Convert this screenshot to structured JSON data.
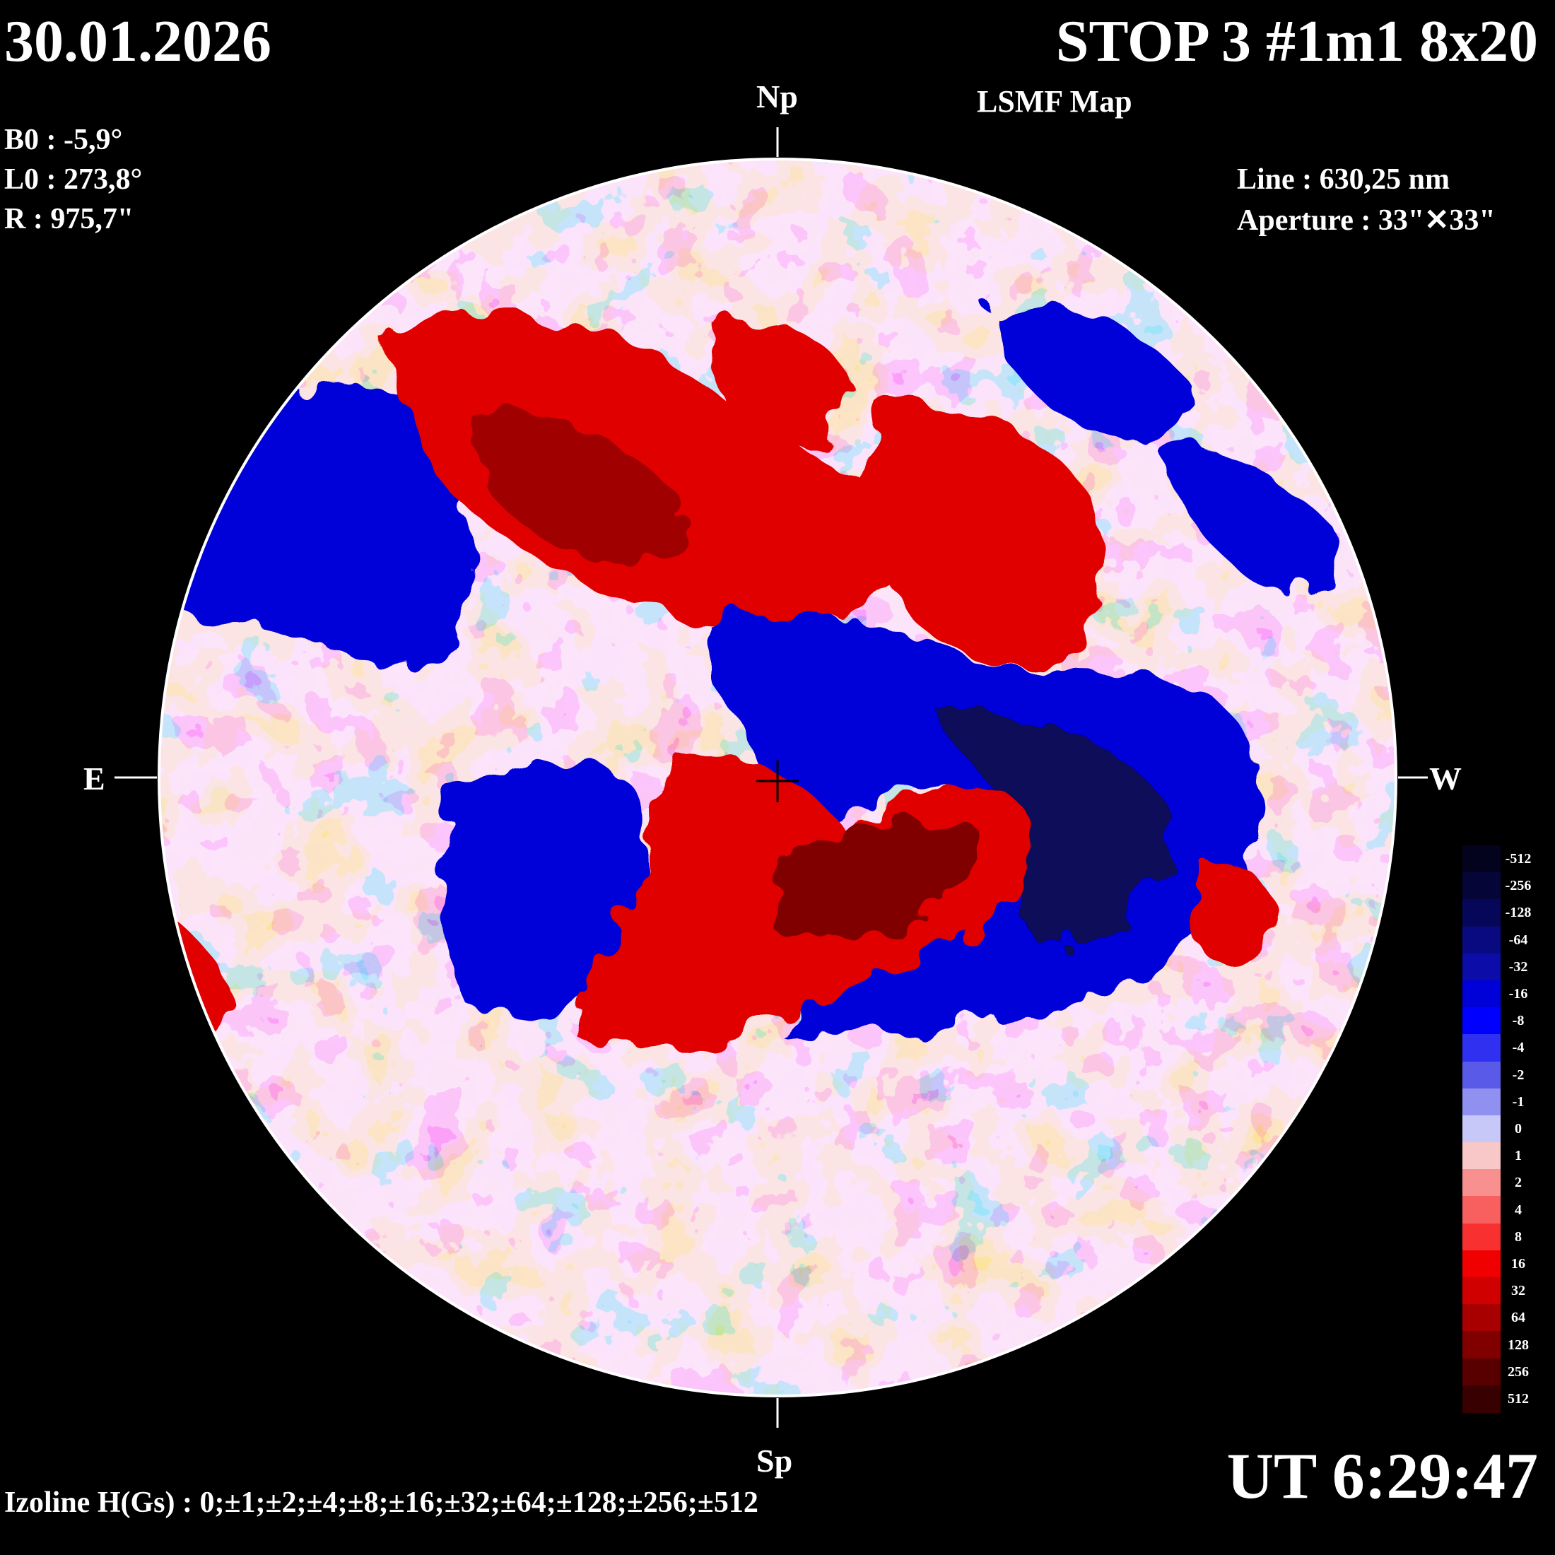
{
  "header": {
    "date": "30.01.2026",
    "title": "STOP 3 #1m1 8x20",
    "subtitle": "LSMF  Map"
  },
  "params": {
    "b0": "B0 : -5,9°",
    "l0": "L0 : 273,8°",
    "r": "R  : 975,7\"",
    "line": "Line :  630,25 nm",
    "aperture": "Aperture : 33\"✕33\""
  },
  "directions": {
    "north": "Np",
    "south": "Sp",
    "east": "E",
    "west": "W"
  },
  "footer": {
    "time": "UT 6:29:47",
    "izoline": "Izoline H(Gs) : 0;±1;±2;±4;±8;±16;±32;±64;±128;±256;±512"
  },
  "legend": {
    "labels": [
      "-512",
      "-256",
      "-128",
      "-64",
      "-32",
      "-16",
      "-8",
      "-4",
      "-2",
      "-1",
      "0",
      "1",
      "2",
      "4",
      "8",
      "16",
      "32",
      "64",
      "128",
      "256",
      "512"
    ],
    "colors": [
      "#03031e",
      "#050538",
      "#07075a",
      "#0a0a80",
      "#0c0ca8",
      "#0000d8",
      "#0000ff",
      "#3030f0",
      "#5a5ae8",
      "#9090f0",
      "#c8c8f8",
      "#f8c8c8",
      "#f89090",
      "#f86060",
      "#f83030",
      "#f00000",
      "#d00000",
      "#a80000",
      "#800000",
      "#580000",
      "#380000"
    ]
  }
}
